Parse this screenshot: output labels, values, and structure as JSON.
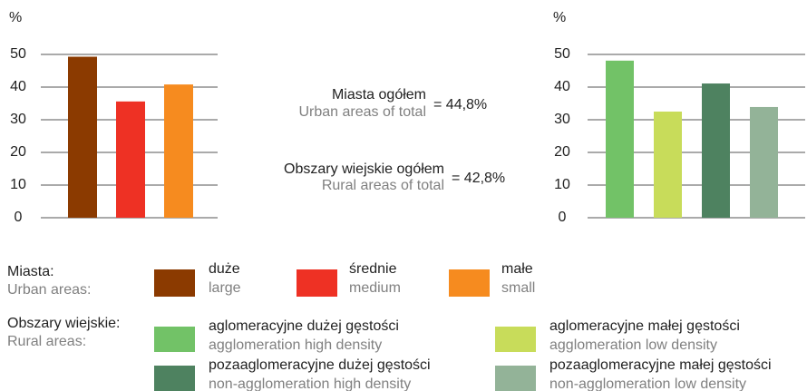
{
  "chart_data": [
    {
      "type": "bar",
      "ylabel": "%",
      "ylim": [
        0,
        50
      ],
      "yticks": [
        0,
        10,
        20,
        30,
        40,
        50
      ],
      "grid": true,
      "legend_label": "Miasta:",
      "legend_label_en": "Urban areas:",
      "series": [
        {
          "name": "duże",
          "name_en": "large",
          "color": "#8b3a00",
          "values": [
            49.3
          ]
        },
        {
          "name": "średnie",
          "name_en": "medium",
          "color": "#ee3124",
          "values": [
            35.6
          ]
        },
        {
          "name": "małe",
          "name_en": "small",
          "color": "#f68b1f",
          "values": [
            40.8
          ]
        }
      ]
    },
    {
      "type": "bar",
      "ylabel": "%",
      "ylim": [
        0,
        50
      ],
      "yticks": [
        0,
        10,
        20,
        30,
        40,
        50
      ],
      "grid": true,
      "legend_label": "Obszary wiejskie:",
      "legend_label_en": "Rural areas:",
      "series": [
        {
          "name": "aglomeracyjne dużej gęstości",
          "name_en": "agglomeration high density",
          "color": "#72c267",
          "values": [
            48.1
          ]
        },
        {
          "name": "aglomeracyjne małej gęstości",
          "name_en": "agglomeration low density",
          "color": "#c8dc5a",
          "values": [
            32.5
          ]
        },
        {
          "name": "pozaaglomeracyjne dużej gęstości",
          "name_en": "non-agglomeration high density",
          "color": "#4e8260",
          "values": [
            41.1
          ]
        },
        {
          "name": "pozaaglomeracyjne małej gęstości",
          "name_en": "non-agglomeration low density",
          "color": "#93b398",
          "values": [
            33.9
          ]
        }
      ]
    }
  ],
  "annotations": [
    {
      "label": "Miasta ogółem",
      "label_en": "Urban areas of total",
      "total": "= 44,8%"
    },
    {
      "label": "Obszary wiejskie ogółem",
      "label_en": "Rural areas of total",
      "total": "= 42,8%"
    }
  ]
}
